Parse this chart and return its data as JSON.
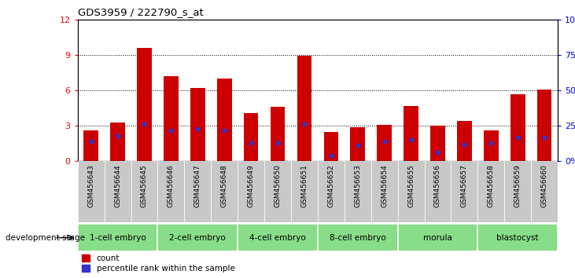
{
  "title": "GDS3959 / 222790_s_at",
  "samples": [
    "GSM456643",
    "GSM456644",
    "GSM456645",
    "GSM456646",
    "GSM456647",
    "GSM456648",
    "GSM456649",
    "GSM456650",
    "GSM456651",
    "GSM456652",
    "GSM456653",
    "GSM456654",
    "GSM456655",
    "GSM456656",
    "GSM456657",
    "GSM456658",
    "GSM456659",
    "GSM456660"
  ],
  "counts": [
    2.6,
    3.3,
    9.6,
    7.2,
    6.2,
    7.0,
    4.1,
    4.6,
    8.9,
    2.5,
    2.9,
    3.1,
    4.7,
    3.0,
    3.4,
    2.6,
    5.7,
    6.1
  ],
  "percentile_ranks": [
    14,
    18,
    26,
    22,
    23,
    22,
    13,
    13,
    26,
    4,
    11,
    14,
    15,
    6,
    12,
    13,
    17,
    17
  ],
  "ylim_left": [
    0,
    12
  ],
  "ylim_right": [
    0,
    100
  ],
  "yticks_left": [
    0,
    3,
    6,
    9,
    12
  ],
  "yticks_right": [
    0,
    25,
    50,
    75,
    100
  ],
  "ytick_labels_right": [
    "0%",
    "25%",
    "50%",
    "75%",
    "100%"
  ],
  "bar_color": "#cc0000",
  "dot_color": "#3333cc",
  "groups": [
    {
      "label": "1-cell embryo",
      "start": 0,
      "end": 3
    },
    {
      "label": "2-cell embryo",
      "start": 3,
      "end": 6
    },
    {
      "label": "4-cell embryo",
      "start": 6,
      "end": 9
    },
    {
      "label": "8-cell embryo",
      "start": 9,
      "end": 12
    },
    {
      "label": "morula",
      "start": 12,
      "end": 15
    },
    {
      "label": "blastocyst",
      "start": 15,
      "end": 18
    }
  ],
  "legend_count_label": "count",
  "legend_pct_label": "percentile rank within the sample",
  "green_color": "#88dd88",
  "tick_bg_color": "#c8c8c8"
}
